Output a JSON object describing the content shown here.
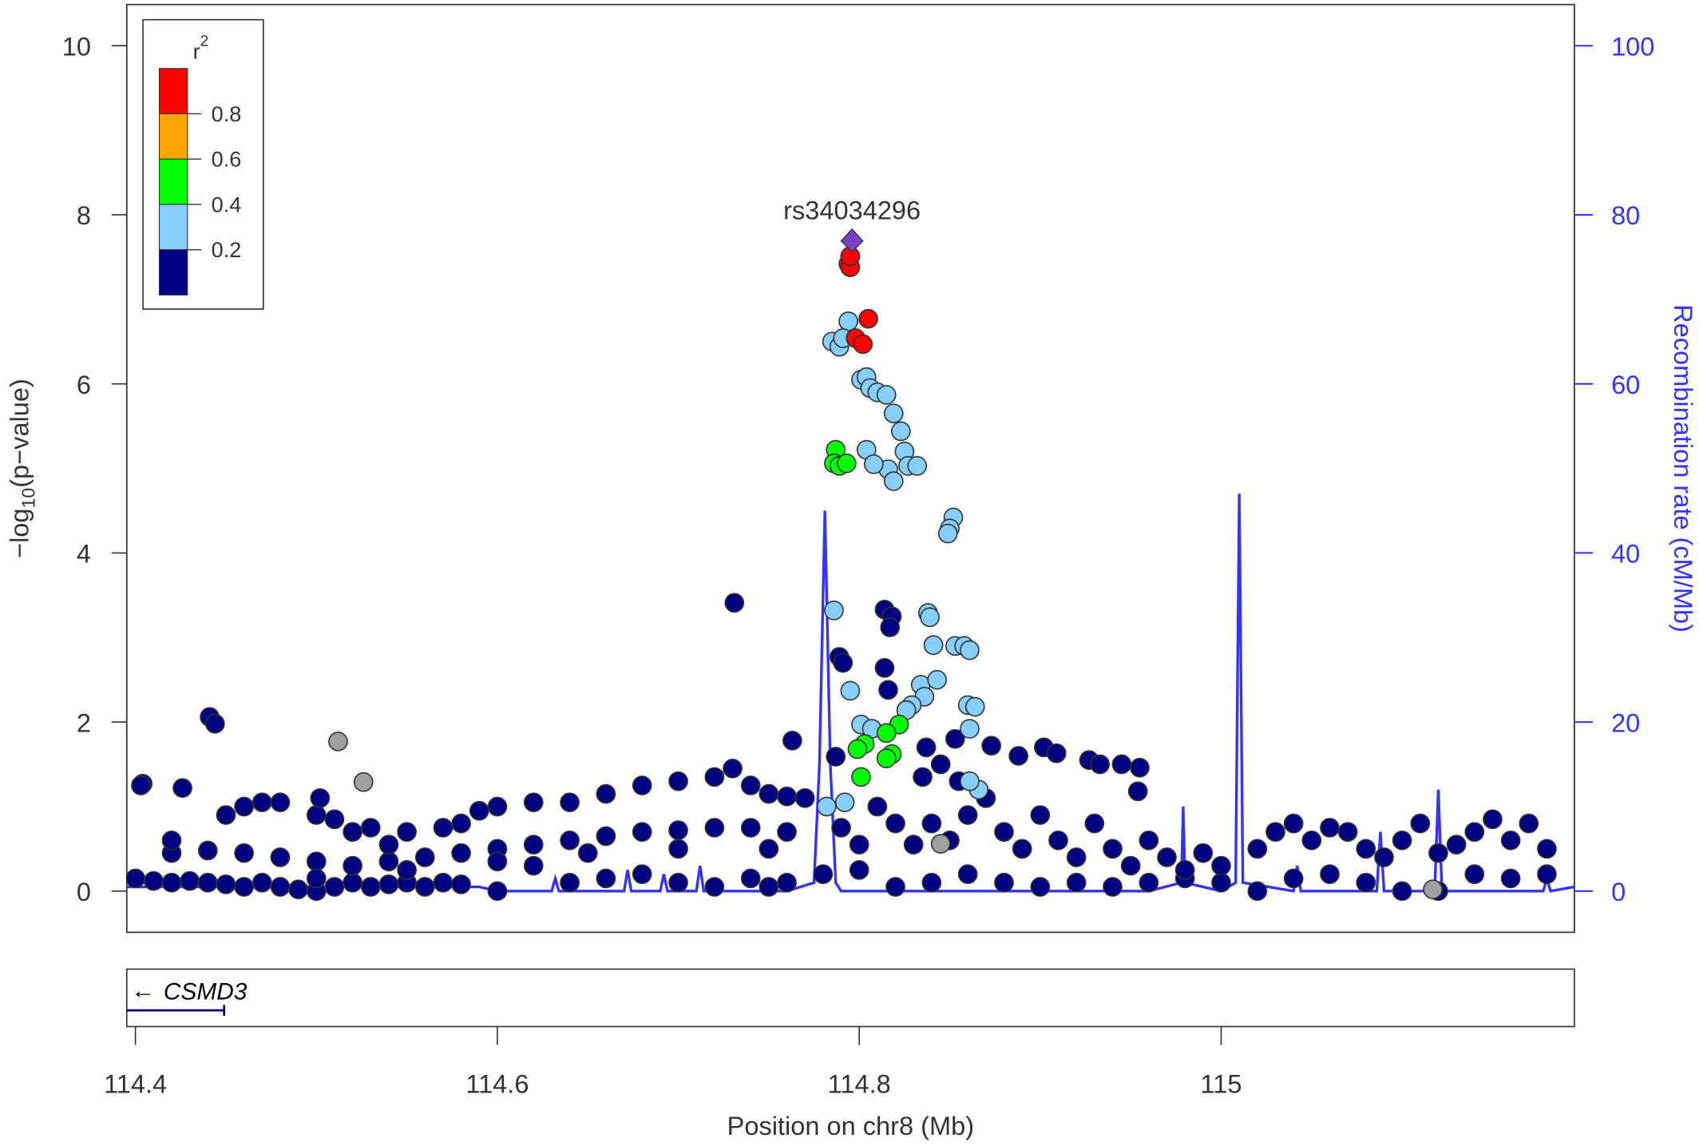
{
  "chart_data": {
    "type": "scatter",
    "title": "",
    "xlabel": "Position on chr8 (Mb)",
    "ylabel": "−log10(p-value)",
    "ylabel_parts": {
      "pre": "−log",
      "sub": "10",
      "post": "(p−value)"
    },
    "y2label": "Recombination rate (cM/Mb)",
    "xlim": [
      114.395,
      115.195
    ],
    "ylim": [
      -0.5,
      10.5
    ],
    "y2lim": [
      -5,
      105
    ],
    "xticks": [
      114.4,
      114.6,
      114.8,
      115.0
    ],
    "xtick_labels": [
      "114.4",
      "114.6",
      "114.8",
      "115"
    ],
    "yticks": [
      0,
      2,
      4,
      6,
      8,
      10
    ],
    "ytick_labels": [
      "0",
      "2",
      "4",
      "6",
      "8",
      "10"
    ],
    "y2ticks": [
      0,
      20,
      40,
      60,
      80,
      100
    ],
    "y2tick_labels": [
      "0",
      "20",
      "40",
      "60",
      "80",
      "100"
    ],
    "lead_snp": {
      "label": "rs34034296",
      "pos": 114.796,
      "logp": 7.69
    },
    "legend": {
      "title": "r",
      "title_sup": "2",
      "placement": "top-left",
      "bins": [
        {
          "label": "0.8",
          "color": "#ff0000"
        },
        {
          "label": "0.6",
          "color": "#ffa500"
        },
        {
          "label": "0.4",
          "color": "#00ff00"
        },
        {
          "label": "0.2",
          "color": "#87cefa"
        },
        {
          "label": "",
          "color": "#000080"
        }
      ]
    },
    "colors": {
      "n": "#000080",
      "l": "#87cefa",
      "g": "#00ff00",
      "r": "#ff0000",
      "o": "#ffa500",
      "p": "#7b3fc8",
      "x": "#a0a0a0",
      "recomb": "#3333ff"
    },
    "points": [
      [
        114.4,
        0.15,
        "n"
      ],
      [
        114.41,
        0.12,
        "n"
      ],
      [
        114.42,
        0.1,
        "n"
      ],
      [
        114.43,
        0.12,
        "n"
      ],
      [
        114.44,
        0.1,
        "n"
      ],
      [
        114.45,
        0.08,
        "n"
      ],
      [
        114.46,
        0.05,
        "n"
      ],
      [
        114.47,
        0.1,
        "n"
      ],
      [
        114.48,
        0.05,
        "n"
      ],
      [
        114.49,
        0.02,
        "n"
      ],
      [
        114.5,
        0.0,
        "n"
      ],
      [
        114.51,
        0.05,
        "n"
      ],
      [
        114.52,
        0.1,
        "n"
      ],
      [
        114.53,
        0.05,
        "n"
      ],
      [
        114.54,
        0.08,
        "n"
      ],
      [
        114.55,
        0.1,
        "n"
      ],
      [
        114.56,
        0.05,
        "n"
      ],
      [
        114.57,
        0.1,
        "n"
      ],
      [
        114.58,
        0.08,
        "n"
      ],
      [
        114.6,
        0.0,
        "n"
      ],
      [
        114.62,
        0.3,
        "n"
      ],
      [
        114.64,
        0.1,
        "n"
      ],
      [
        114.66,
        0.15,
        "n"
      ],
      [
        114.68,
        0.2,
        "n"
      ],
      [
        114.7,
        0.1,
        "n"
      ],
      [
        114.72,
        0.05,
        "n"
      ],
      [
        114.74,
        0.15,
        "n"
      ],
      [
        114.75,
        0.05,
        "n"
      ],
      [
        114.76,
        0.1,
        "n"
      ],
      [
        114.78,
        0.2,
        "n"
      ],
      [
        114.8,
        0.25,
        "n"
      ],
      [
        114.82,
        0.05,
        "n"
      ],
      [
        114.84,
        0.1,
        "n"
      ],
      [
        114.86,
        0.2,
        "n"
      ],
      [
        114.88,
        0.1,
        "n"
      ],
      [
        114.9,
        0.05,
        "n"
      ],
      [
        114.92,
        0.1,
        "n"
      ],
      [
        114.94,
        0.05,
        "n"
      ],
      [
        114.96,
        0.1,
        "n"
      ],
      [
        114.98,
        0.15,
        "n"
      ],
      [
        115.0,
        0.1,
        "n"
      ],
      [
        115.02,
        0.0,
        "n"
      ],
      [
        115.04,
        0.15,
        "n"
      ],
      [
        115.06,
        0.2,
        "n"
      ],
      [
        115.08,
        0.1,
        "n"
      ],
      [
        115.1,
        0.0,
        "n"
      ],
      [
        115.12,
        0.0,
        "n"
      ],
      [
        115.14,
        0.2,
        "n"
      ],
      [
        115.16,
        0.15,
        "n"
      ],
      [
        115.18,
        0.2,
        "n"
      ],
      [
        114.42,
        0.45,
        "n"
      ],
      [
        114.44,
        0.48,
        "n"
      ],
      [
        114.46,
        0.45,
        "n"
      ],
      [
        114.48,
        0.4,
        "n"
      ],
      [
        114.5,
        0.35,
        "n"
      ],
      [
        114.52,
        0.3,
        "n"
      ],
      [
        114.54,
        0.35,
        "n"
      ],
      [
        114.56,
        0.4,
        "n"
      ],
      [
        114.58,
        0.45,
        "n"
      ],
      [
        114.6,
        0.5,
        "n"
      ],
      [
        114.62,
        0.55,
        "n"
      ],
      [
        114.64,
        0.6,
        "n"
      ],
      [
        114.66,
        0.65,
        "n"
      ],
      [
        114.68,
        0.7,
        "n"
      ],
      [
        114.7,
        0.72,
        "n"
      ],
      [
        114.72,
        0.75,
        "n"
      ],
      [
        114.74,
        0.75,
        "n"
      ],
      [
        114.76,
        0.7,
        "n"
      ],
      [
        114.5,
        0.15,
        "n"
      ],
      [
        114.55,
        0.25,
        "n"
      ],
      [
        114.6,
        0.35,
        "n"
      ],
      [
        114.65,
        0.45,
        "n"
      ],
      [
        114.7,
        0.5,
        "n"
      ],
      [
        114.75,
        0.5,
        "n"
      ],
      [
        114.59,
        0.95,
        "n"
      ],
      [
        114.6,
        1.0,
        "n"
      ],
      [
        114.62,
        1.05,
        "n"
      ],
      [
        114.64,
        1.05,
        "n"
      ],
      [
        114.66,
        1.15,
        "n"
      ],
      [
        114.68,
        1.25,
        "n"
      ],
      [
        114.7,
        1.3,
        "n"
      ],
      [
        114.72,
        1.35,
        "n"
      ],
      [
        114.73,
        1.45,
        "n"
      ],
      [
        114.74,
        1.25,
        "n"
      ],
      [
        114.75,
        1.15,
        "n"
      ],
      [
        114.76,
        1.12,
        "n"
      ],
      [
        114.77,
        1.1,
        "n"
      ],
      [
        114.45,
        0.9,
        "n"
      ],
      [
        114.46,
        1.0,
        "n"
      ],
      [
        114.47,
        1.05,
        "n"
      ],
      [
        114.48,
        1.05,
        "n"
      ],
      [
        114.5,
        0.9,
        "n"
      ],
      [
        114.51,
        0.85,
        "n"
      ],
      [
        114.52,
        0.7,
        "n"
      ],
      [
        114.53,
        0.75,
        "n"
      ],
      [
        114.54,
        0.55,
        "n"
      ],
      [
        114.55,
        0.7,
        "n"
      ],
      [
        114.57,
        0.75,
        "n"
      ],
      [
        114.58,
        0.8,
        "n"
      ],
      [
        114.84,
        0.8,
        "n"
      ],
      [
        114.85,
        0.6,
        "n"
      ],
      [
        114.86,
        0.9,
        "n"
      ],
      [
        114.87,
        1.1,
        "n"
      ],
      [
        114.88,
        0.7,
        "n"
      ],
      [
        114.89,
        0.5,
        "n"
      ],
      [
        114.9,
        0.9,
        "n"
      ],
      [
        114.91,
        0.6,
        "n"
      ],
      [
        114.92,
        0.4,
        "n"
      ],
      [
        114.93,
        0.8,
        "n"
      ],
      [
        114.94,
        0.5,
        "n"
      ],
      [
        114.95,
        0.3,
        "n"
      ],
      [
        114.96,
        0.6,
        "n"
      ],
      [
        114.97,
        0.4,
        "n"
      ],
      [
        114.98,
        0.25,
        "n"
      ],
      [
        114.99,
        0.45,
        "n"
      ],
      [
        115.0,
        0.3,
        "n"
      ],
      [
        115.02,
        0.5,
        "n"
      ],
      [
        115.03,
        0.7,
        "n"
      ],
      [
        115.04,
        0.8,
        "n"
      ],
      [
        115.05,
        0.6,
        "n"
      ],
      [
        115.06,
        0.75,
        "n"
      ],
      [
        115.07,
        0.7,
        "n"
      ],
      [
        115.08,
        0.5,
        "n"
      ],
      [
        115.09,
        0.4,
        "n"
      ],
      [
        115.1,
        0.6,
        "n"
      ],
      [
        115.11,
        0.8,
        "n"
      ],
      [
        115.12,
        0.45,
        "n"
      ],
      [
        115.13,
        0.55,
        "n"
      ],
      [
        115.14,
        0.7,
        "n"
      ],
      [
        115.15,
        0.85,
        "n"
      ],
      [
        115.16,
        0.6,
        "n"
      ],
      [
        115.17,
        0.8,
        "n"
      ],
      [
        115.18,
        0.5,
        "n"
      ],
      [
        114.79,
        0.75,
        "n"
      ],
      [
        114.8,
        0.55,
        "n"
      ],
      [
        114.81,
        1.0,
        "n"
      ],
      [
        114.82,
        0.8,
        "n"
      ],
      [
        114.83,
        0.55,
        "n"
      ],
      [
        114.835,
        1.35,
        "n"
      ],
      [
        114.845,
        1.5,
        "n"
      ],
      [
        114.855,
        1.3,
        "n"
      ],
      [
        114.787,
        1.59,
        "n"
      ],
      [
        114.404,
        1.27,
        "n"
      ],
      [
        114.403,
        1.25,
        "n"
      ],
      [
        114.426,
        1.22,
        "n"
      ],
      [
        114.42,
        0.6,
        "n"
      ],
      [
        114.502,
        1.1,
        "n"
      ],
      [
        114.441,
        2.06,
        "n"
      ],
      [
        114.444,
        1.98,
        "n"
      ],
      [
        114.731,
        3.41,
        "n"
      ],
      [
        114.763,
        1.78,
        "n"
      ],
      [
        114.789,
        2.77,
        "n"
      ],
      [
        114.791,
        2.7,
        "n"
      ],
      [
        114.814,
        3.33,
        "n"
      ],
      [
        114.818,
        3.25,
        "n"
      ],
      [
        114.817,
        3.12,
        "n"
      ],
      [
        114.814,
        2.64,
        "n"
      ],
      [
        114.816,
        2.38,
        "n"
      ],
      [
        114.837,
        1.7,
        "n"
      ],
      [
        114.853,
        1.8,
        "n"
      ],
      [
        114.873,
        1.72,
        "n"
      ],
      [
        114.888,
        1.6,
        "n"
      ],
      [
        114.902,
        1.7,
        "n"
      ],
      [
        114.909,
        1.63,
        "n"
      ],
      [
        114.927,
        1.55,
        "n"
      ],
      [
        114.933,
        1.5,
        "n"
      ],
      [
        114.945,
        1.5,
        "n"
      ],
      [
        114.955,
        1.46,
        "n"
      ],
      [
        114.954,
        1.18,
        "n"
      ],
      [
        114.512,
        1.77,
        "x"
      ],
      [
        114.526,
        1.29,
        "x"
      ],
      [
        114.845,
        0.56,
        "x"
      ],
      [
        115.117,
        0.02,
        "x"
      ],
      [
        114.786,
        3.32,
        "l"
      ],
      [
        114.838,
        3.29,
        "l"
      ],
      [
        114.839,
        3.24,
        "l"
      ],
      [
        114.841,
        2.91,
        "l"
      ],
      [
        114.853,
        2.9,
        "l"
      ],
      [
        114.858,
        2.9,
        "l"
      ],
      [
        114.861,
        2.85,
        "l"
      ],
      [
        114.795,
        2.37,
        "l"
      ],
      [
        114.834,
        2.44,
        "l"
      ],
      [
        114.843,
        2.5,
        "l"
      ],
      [
        114.836,
        2.3,
        "l"
      ],
      [
        114.829,
        2.2,
        "l"
      ],
      [
        114.826,
        2.14,
        "l"
      ],
      [
        114.86,
        2.2,
        "l"
      ],
      [
        114.864,
        2.18,
        "l"
      ],
      [
        114.861,
        1.92,
        "l"
      ],
      [
        114.801,
        1.97,
        "l"
      ],
      [
        114.807,
        1.92,
        "l"
      ],
      [
        114.782,
        1.0,
        "l"
      ],
      [
        114.792,
        1.05,
        "l"
      ],
      [
        114.866,
        1.2,
        "l"
      ],
      [
        114.861,
        1.3,
        "l"
      ],
      [
        114.852,
        4.42,
        "l"
      ],
      [
        114.85,
        4.29,
        "l"
      ],
      [
        114.849,
        4.23,
        "l"
      ],
      [
        114.794,
        6.74,
        "l"
      ],
      [
        114.785,
        6.5,
        "l"
      ],
      [
        114.789,
        6.44,
        "l"
      ],
      [
        114.791,
        6.54,
        "l"
      ],
      [
        114.801,
        6.05,
        "l"
      ],
      [
        114.804,
        6.08,
        "l"
      ],
      [
        114.806,
        5.95,
        "l"
      ],
      [
        114.81,
        5.9,
        "l"
      ],
      [
        114.815,
        5.87,
        "l"
      ],
      [
        114.819,
        5.65,
        "l"
      ],
      [
        114.823,
        5.44,
        "l"
      ],
      [
        114.825,
        5.2,
        "l"
      ],
      [
        114.827,
        5.03,
        "l"
      ],
      [
        114.832,
        5.03,
        "l"
      ],
      [
        114.816,
        4.99,
        "l"
      ],
      [
        114.819,
        4.85,
        "l"
      ],
      [
        114.804,
        5.22,
        "l"
      ],
      [
        114.808,
        5.05,
        "l"
      ],
      [
        114.787,
        5.22,
        "g"
      ],
      [
        114.786,
        5.06,
        "g"
      ],
      [
        114.789,
        5.03,
        "g"
      ],
      [
        114.793,
        5.06,
        "g"
      ],
      [
        114.822,
        1.97,
        "g"
      ],
      [
        114.815,
        1.87,
        "g"
      ],
      [
        114.803,
        1.74,
        "g"
      ],
      [
        114.799,
        1.68,
        "g"
      ],
      [
        114.818,
        1.62,
        "g"
      ],
      [
        114.815,
        1.57,
        "g"
      ],
      [
        114.801,
        1.35,
        "g"
      ],
      [
        114.794,
        7.42,
        "r"
      ],
      [
        114.795,
        7.38,
        "r"
      ],
      [
        114.795,
        7.51,
        "r"
      ],
      [
        114.805,
        6.77,
        "r"
      ],
      [
        114.798,
        6.54,
        "r"
      ],
      [
        114.802,
        6.47,
        "r"
      ],
      [
        114.796,
        7.69,
        "p"
      ]
    ],
    "recombination": [
      [
        114.395,
        0.5
      ],
      [
        114.59,
        0.5
      ],
      [
        114.6,
        0
      ],
      [
        114.63,
        0
      ],
      [
        114.632,
        1.5
      ],
      [
        114.634,
        0
      ],
      [
        114.67,
        0
      ],
      [
        114.672,
        2.5
      ],
      [
        114.674,
        0
      ],
      [
        114.69,
        0
      ],
      [
        114.692,
        2
      ],
      [
        114.694,
        0
      ],
      [
        114.71,
        0
      ],
      [
        114.712,
        3
      ],
      [
        114.714,
        0
      ],
      [
        114.76,
        0
      ],
      [
        114.775,
        1
      ],
      [
        114.778,
        15
      ],
      [
        114.781,
        45
      ],
      [
        114.784,
        15
      ],
      [
        114.787,
        1
      ],
      [
        114.79,
        0
      ],
      [
        114.96,
        0
      ],
      [
        114.978,
        1
      ],
      [
        114.979,
        10
      ],
      [
        114.98,
        1
      ],
      [
        115.0,
        0
      ],
      [
        115.008,
        1
      ],
      [
        115.01,
        47
      ],
      [
        115.012,
        1
      ],
      [
        115.04,
        0
      ],
      [
        115.042,
        3
      ],
      [
        115.044,
        0
      ],
      [
        115.086,
        0
      ],
      [
        115.088,
        7
      ],
      [
        115.09,
        0
      ],
      [
        115.118,
        0
      ],
      [
        115.12,
        12
      ],
      [
        115.122,
        0
      ],
      [
        115.178,
        0
      ],
      [
        115.18,
        1.5
      ],
      [
        115.182,
        0
      ],
      [
        115.195,
        0.5
      ]
    ],
    "genes": [
      {
        "name": "CSMD3",
        "direction": "←",
        "start": 114.39,
        "end": 114.449
      }
    ]
  }
}
